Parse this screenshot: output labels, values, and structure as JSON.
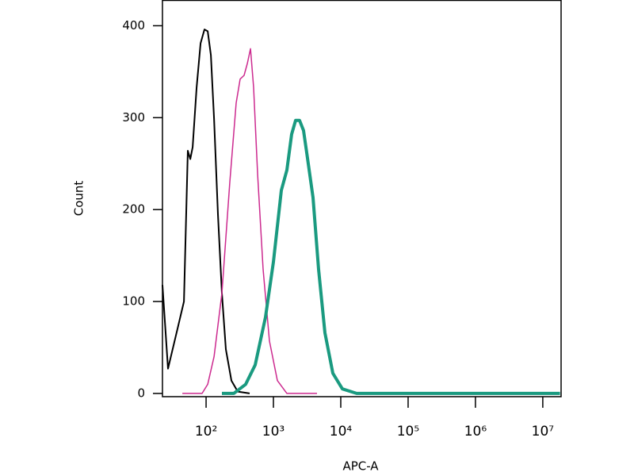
{
  "chart_data": {
    "type": "line",
    "x_label": "APC-A",
    "y_label": "Count",
    "xscale": "log",
    "xlim": [
      22.5,
      18700000
    ],
    "ylim": [
      -3.5,
      428
    ],
    "xticks": [
      {
        "value": 100,
        "label": "10²"
      },
      {
        "value": 1000,
        "label": "10³"
      },
      {
        "value": 10000,
        "label": "10⁴"
      },
      {
        "value": 100000,
        "label": "10⁵"
      },
      {
        "value": 1000000,
        "label": "10⁶"
      },
      {
        "value": 10000000,
        "label": "10⁷"
      }
    ],
    "yticks": [
      0,
      100,
      200,
      300,
      400
    ],
    "series": [
      {
        "color": "#000000",
        "width": 2,
        "x": [
          22.5,
          27.2,
          38.7,
          46.9,
          53.6,
          58.2,
          63.1,
          72.3,
          82.8,
          94.7,
          105.6,
          117.7,
          131.2,
          150,
          171.8,
          196.6,
          237.7,
          295.6,
          443.6
        ],
        "values": [
          118,
          27,
          74,
          100,
          264,
          255,
          268,
          333,
          381,
          396,
          394,
          368,
          299,
          195,
          109,
          48,
          14,
          2,
          0
        ]
      },
      {
        "color": "#cc2a8f",
        "width": 1.5,
        "x": [
          44.4,
          87.3,
          105.6,
          131.2,
          171.8,
          225.4,
          279.9,
          320.6,
          367.2,
          409.6,
          456.3,
          508.2,
          582.4,
          703.6,
          873,
          1146,
          1585,
          4437
        ],
        "values": [
          0,
          0,
          10,
          40,
          109,
          230,
          316,
          342,
          346,
          359,
          375,
          333,
          238,
          135,
          57,
          14,
          0,
          0
        ]
      },
      {
        "color": "#1a9a80",
        "width": 4,
        "x": [
          171.8,
          258,
          387.3,
          536,
          762,
          1000,
          1312,
          1585,
          1866,
          2133,
          2442,
          2799,
          3206,
          3873,
          4688,
          5823,
          7623,
          10560,
          17180,
          18000000
        ],
        "values": [
          0,
          0,
          10,
          31,
          83,
          143,
          221,
          243,
          282,
          297,
          297,
          286,
          256,
          213,
          135,
          66,
          22,
          5,
          0,
          0
        ]
      }
    ]
  }
}
